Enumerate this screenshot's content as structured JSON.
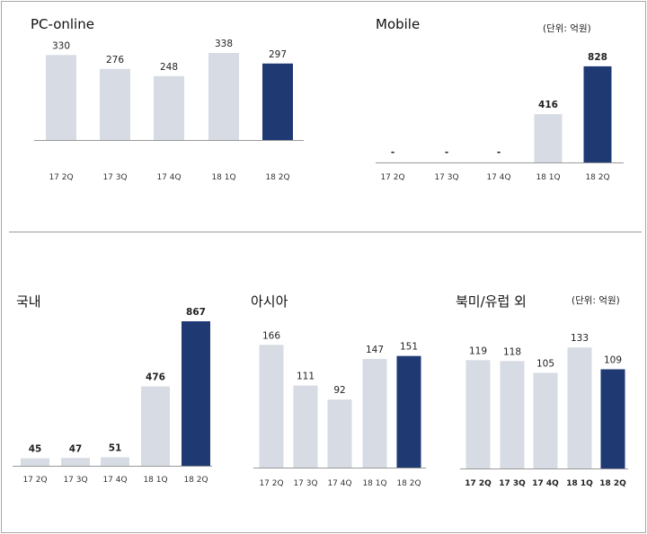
{
  "colors": {
    "base": "#d6dbe4",
    "highlight": "#1f3a73",
    "axis": "#9a9a9a"
  },
  "unit_label": "(단위: 억원)",
  "chart_data": [
    {
      "id": "pc-online",
      "type": "bar",
      "title": "PC-online",
      "categories": [
        "17 2Q",
        "17 3Q",
        "17 4Q",
        "18 1Q",
        "18 2Q"
      ],
      "values": [
        330,
        276,
        248,
        338,
        297
      ],
      "value_labels": [
        "330",
        "276",
        "248",
        "338",
        "297"
      ],
      "highlight_index": 4,
      "ylim": [
        0,
        345
      ]
    },
    {
      "id": "mobile",
      "type": "bar",
      "title": "Mobile",
      "unit": "(단위: 억원)",
      "categories": [
        "17 2Q",
        "17 3Q",
        "17 4Q",
        "18 1Q",
        "18 2Q"
      ],
      "values": [
        null,
        null,
        null,
        416,
        828
      ],
      "value_labels": [
        "-",
        "-",
        "-",
        "416",
        "828"
      ],
      "highlight_index": 4,
      "ylim": [
        0,
        835
      ]
    },
    {
      "id": "domestic",
      "type": "bar",
      "title": "국내",
      "categories": [
        "17 2Q",
        "17 3Q",
        "17 4Q",
        "18 1Q",
        "18 2Q"
      ],
      "values": [
        45,
        47,
        51,
        476,
        867
      ],
      "value_labels": [
        "45",
        "47",
        "51",
        "476",
        "867"
      ],
      "highlight_index": 4,
      "ylim": [
        0,
        867
      ]
    },
    {
      "id": "asia",
      "type": "bar",
      "title": "아시아",
      "categories": [
        "17 2Q",
        "17 3Q",
        "17 4Q",
        "18 1Q",
        "18 2Q"
      ],
      "values": [
        166,
        111,
        92,
        147,
        151
      ],
      "value_labels": [
        "166",
        "111",
        "92",
        "147",
        "151"
      ],
      "highlight_index": 4,
      "ylim": [
        0,
        170
      ]
    },
    {
      "id": "na-eu",
      "type": "bar",
      "title": "북미/유럽 외",
      "unit": "(단위: 억원)",
      "categories": [
        "17 2Q",
        "17 3Q",
        "17 4Q",
        "18 1Q",
        "18 2Q"
      ],
      "values": [
        119,
        118,
        105,
        133,
        109
      ],
      "value_labels": [
        "119",
        "118",
        "105",
        "133",
        "109"
      ],
      "highlight_index": 4,
      "ylim": [
        0,
        141
      ]
    }
  ]
}
